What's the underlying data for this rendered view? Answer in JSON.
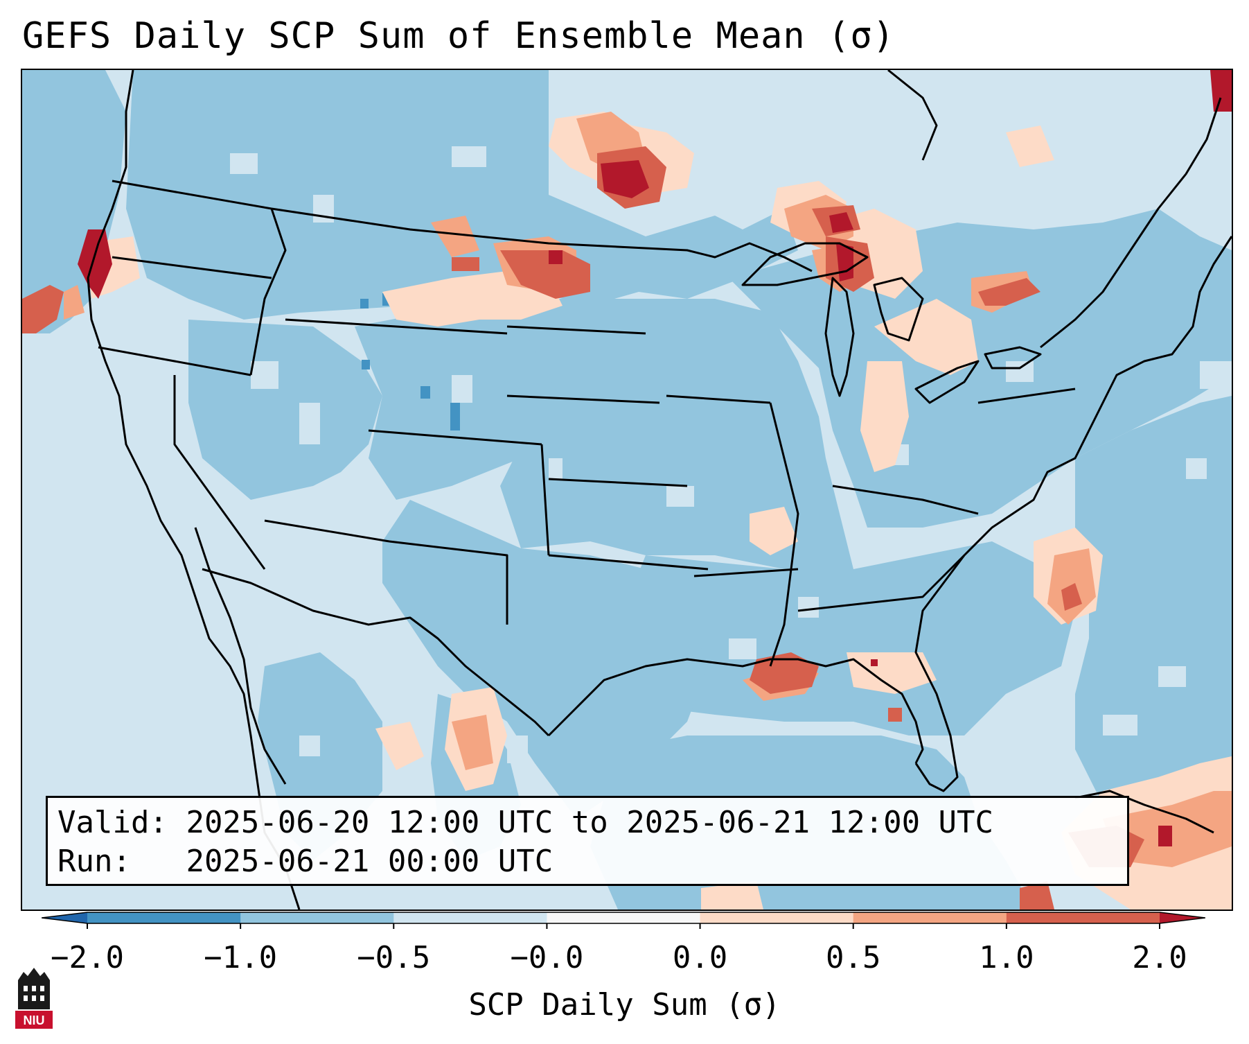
{
  "title": "GEFS Daily SCP Sum of Ensemble Mean (σ)",
  "info": {
    "valid_label": "Valid:",
    "valid_value": "2025-06-20 12:00 UTC to 2025-06-21 12:00 UTC",
    "run_label": "Run:",
    "run_value": "2025-06-21 00:00 UTC"
  },
  "colorbar": {
    "label": "SCP Daily Sum (σ)",
    "tick_labels": [
      "−2.0",
      "−1.0",
      "−0.5",
      "−0.0",
      "0.0",
      "0.5",
      "1.0",
      "2.0"
    ],
    "bins": [
      {
        "range": "< -2.0",
        "color": "#2166ac"
      },
      {
        "range": "-2.0 to -1.0",
        "color": "#4393c3"
      },
      {
        "range": "-1.0 to -0.5",
        "color": "#92c5de"
      },
      {
        "range": "-0.5 to -0.0",
        "color": "#d1e5f0"
      },
      {
        "range": "-0.0 to 0.0",
        "color": "#f7f7f7"
      },
      {
        "range": "0.0 to 0.5",
        "color": "#fddbc7"
      },
      {
        "range": "0.5 to 1.0",
        "color": "#f4a582"
      },
      {
        "range": "1.0 to 2.0",
        "color": "#d6604d"
      },
      {
        "range": "> 2.0",
        "color": "#b2182b"
      }
    ]
  },
  "map_features": [
    {
      "name": "Northern Plains (ND/SD/MT)",
      "category": "1.0 to 2.0"
    },
    {
      "name": "Upper Peninsula Michigan",
      "category": "1.0 to 2.0"
    },
    {
      "name": "Lake Michigan / western Michigan",
      "category": "> 2.0"
    },
    {
      "name": "Oregon coast",
      "category": "> 2.0"
    },
    {
      "name": "Louisiana coast",
      "category": "1.0 to 2.0"
    },
    {
      "name": "Carolina offshore",
      "category": "1.0 to 2.0"
    },
    {
      "name": "Gulf of St. Lawrence",
      "category": "> 2.0"
    },
    {
      "name": "Caribbean south of Cuba",
      "category": "1.0 to 2.0"
    }
  ],
  "logo": {
    "text": "NIU"
  }
}
